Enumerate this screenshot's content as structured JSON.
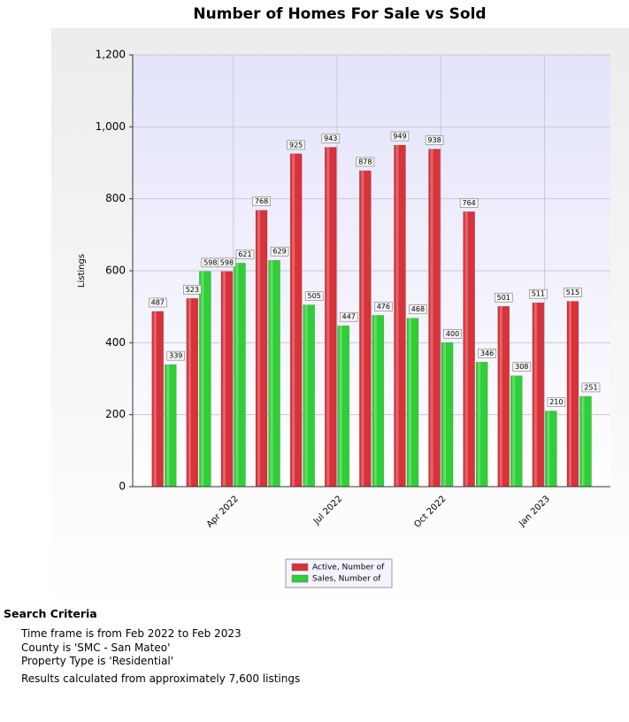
{
  "chart_data": {
    "type": "bar",
    "title": "Number of Homes For Sale vs Sold",
    "y_label": "Listings",
    "categories": [
      null,
      null,
      "Apr 2022",
      null,
      null,
      "Jul 2022",
      null,
      null,
      "Oct 2022",
      null,
      null,
      "Jan 2023",
      null
    ],
    "series": [
      {
        "name": "Active, Number of",
        "color": "#d8323a",
        "values": [
          487,
          523,
          598,
          768,
          925,
          943,
          878,
          949,
          938,
          764,
          501,
          511,
          515
        ]
      },
      {
        "name": "Sales, Number of",
        "color": "#2fcf37",
        "values": [
          339,
          598,
          621,
          629,
          505,
          447,
          476,
          468,
          400,
          346,
          308,
          210,
          251
        ]
      }
    ],
    "ylim": [
      0,
      1200
    ],
    "yticks": [
      0,
      200,
      400,
      600,
      800,
      {
        "value": 1000,
        "label": "1,000"
      },
      {
        "value": 1200,
        "label": "1,200"
      }
    ],
    "grid": true
  },
  "criteria": {
    "heading": "Search Criteria",
    "lines": [
      "Time frame is from Feb 2022 to Feb 2023",
      "County is 'SMC - San Mateo'",
      "Property Type is 'Residential'",
      "Results calculated from approximately 7,600 listings"
    ]
  }
}
